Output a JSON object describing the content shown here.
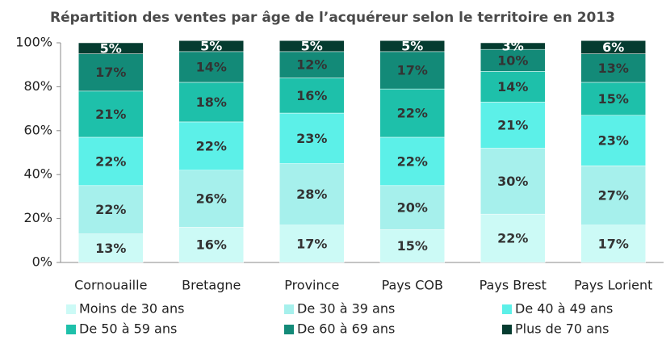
{
  "chart_data": {
    "type": "stacked_bar",
    "title": "Répartition des ventes par âge de l’acquéreur selon le territoire en 2013",
    "categories": [
      "Cornouaille",
      "Bretagne",
      "Province",
      "Pays COB",
      "Pays Brest",
      "Pays Lorient"
    ],
    "series": [
      {
        "name": "Moins de 30 ans",
        "color": "#ccfaf6",
        "values": [
          13,
          16,
          17,
          15,
          22,
          17
        ],
        "value_labels": [
          "13%",
          "16%",
          "17%",
          "15%",
          "22%",
          "17%"
        ]
      },
      {
        "name": "De 30 à 39 ans",
        "color": "#a6f0ec",
        "values": [
          22,
          26,
          28,
          20,
          30,
          27
        ],
        "value_labels": [
          "22%",
          "26%",
          "28%",
          "20%",
          "30%",
          "27%"
        ]
      },
      {
        "name": "De 40 à 49 ans",
        "color": "#5cf0e8",
        "values": [
          22,
          22,
          23,
          22,
          21,
          23
        ],
        "value_labels": [
          "22%",
          "22%",
          "23%",
          "22%",
          "21%",
          "23%"
        ]
      },
      {
        "name": "De 50 à 59 ans",
        "color": "#1ec0aa",
        "values": [
          21,
          18,
          16,
          22,
          14,
          15
        ],
        "value_labels": [
          "21%",
          "18%",
          "16%",
          "22%",
          "14%",
          "15%"
        ]
      },
      {
        "name": "De 60 à 69 ans",
        "color": "#138a78",
        "values": [
          17,
          14,
          12,
          17,
          10,
          13
        ],
        "value_labels": [
          "17%",
          "14%",
          "12%",
          "17%",
          "10%",
          "13%"
        ]
      },
      {
        "name": "Plus de 70 ans",
        "color": "#053c30",
        "values": [
          5,
          5,
          5,
          5,
          3,
          6
        ],
        "value_labels": [
          "5%",
          "5%",
          "5%",
          "5%",
          "3%",
          "6%"
        ]
      }
    ],
    "ylim": [
      0,
      100
    ],
    "yticks": [
      {
        "value": 0,
        "label": "0%"
      },
      {
        "value": 20,
        "label": "20%"
      },
      {
        "value": 40,
        "label": "40%"
      },
      {
        "value": 60,
        "label": "60%"
      },
      {
        "value": 80,
        "label": "80%"
      },
      {
        "value": 100,
        "label": "100%"
      }
    ]
  }
}
